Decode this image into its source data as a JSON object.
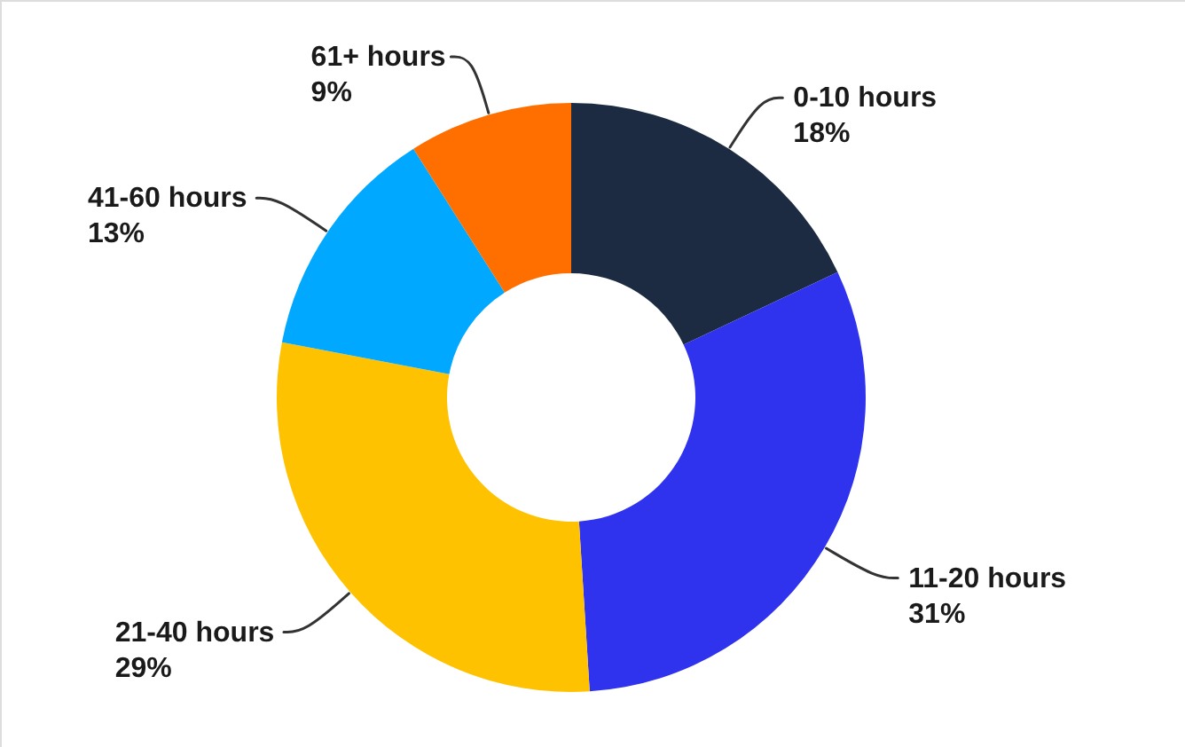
{
  "chart_data": {
    "type": "donut",
    "categories": [
      "0-10 hours",
      "11-20 hours",
      "21-40 hours",
      "41-60 hours",
      "61+ hours"
    ],
    "values": [
      18,
      31,
      29,
      13,
      9
    ],
    "colors": [
      "#1c2b41",
      "#2f33ee",
      "#ffc200",
      "#00a8ff",
      "#ff6f00"
    ],
    "value_labels": [
      "18%",
      "31%",
      "29%",
      "13%",
      "9%"
    ]
  }
}
